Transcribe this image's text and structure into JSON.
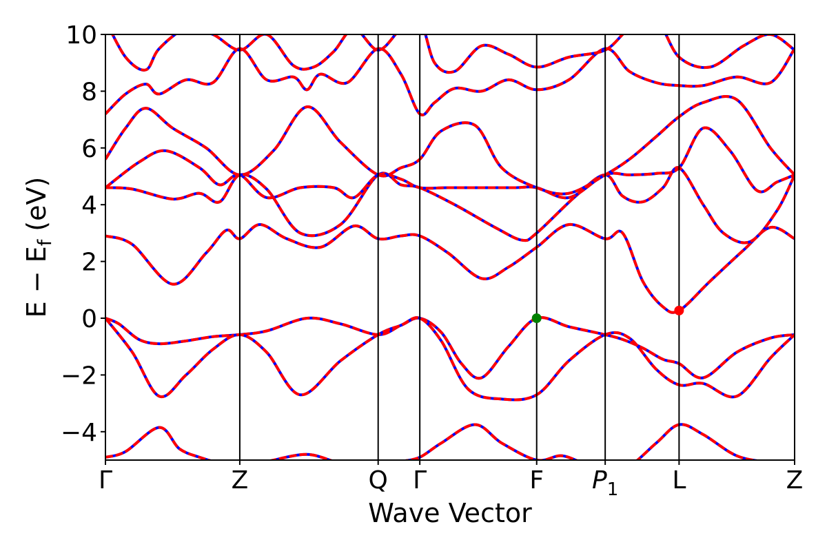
{
  "chart_data": {
    "type": "line",
    "title": "",
    "xlabel": "Wave Vector",
    "ylabel": "E − E_f (eV)",
    "ylabel_parts": {
      "main": "E  −  E",
      "sub": "f",
      "unit": " (eV)"
    },
    "ylim": [
      -5,
      10
    ],
    "yticks": [
      -4,
      -2,
      0,
      2,
      4,
      6,
      8,
      10
    ],
    "ytick_labels": [
      "−4",
      "−2",
      "0",
      "2",
      "4",
      "6",
      "8",
      "10"
    ],
    "xlim": [
      0,
      5.13
    ],
    "kpoints": [
      {
        "label": "Γ",
        "x": 0.0
      },
      {
        "label": "Z",
        "x": 1.0
      },
      {
        "label": "Q",
        "x": 2.03
      },
      {
        "label": "Γ",
        "x": 2.34
      },
      {
        "label": "F",
        "x": 3.21
      },
      {
        "label": "P",
        "sub": "1",
        "x": 3.72
      },
      {
        "label": "L",
        "x": 4.27
      },
      {
        "label": "Z",
        "x": 5.13
      }
    ],
    "series_style": {
      "base_color": "#0000ff",
      "overlay_color": "#ff0000",
      "overlay_dashed": true
    },
    "markers": [
      {
        "name": "VBM",
        "x": 3.21,
        "y": 0.0,
        "color": "#008000"
      },
      {
        "name": "CBM",
        "x": 4.27,
        "y": 0.27,
        "color": "#ff0000"
      }
    ],
    "bands": [
      {
        "x": [
          0,
          0.15,
          0.4,
          0.55,
          0.7,
          0.85,
          1.0,
          1.2,
          1.5,
          1.75,
          2.03,
          2.2,
          2.34,
          2.5,
          2.75,
          2.95,
          3.21,
          3.4,
          3.6,
          3.72,
          3.9,
          4.1,
          4.27,
          4.45,
          4.7,
          4.95,
          5.13
        ],
        "y": [
          -4.9,
          -4.7,
          -3.85,
          -4.6,
          -4.9,
          -5.1,
          -5.2,
          -5.05,
          -4.8,
          -5.1,
          -5.2,
          -5.05,
          -4.9,
          -4.4,
          -3.75,
          -4.4,
          -5.0,
          -4.85,
          -5.2,
          -5.3,
          -5.2,
          -4.4,
          -3.75,
          -4.1,
          -4.85,
          -5.1,
          -5.3
        ]
      },
      {
        "x": [
          0,
          0.1,
          0.25,
          0.4,
          0.6,
          0.8,
          1.0,
          1.2,
          1.5,
          1.75,
          2.03,
          2.2,
          2.34,
          2.5,
          2.65,
          2.8,
          3.0,
          3.21,
          3.45,
          3.72,
          3.85,
          4.0,
          4.15,
          4.27,
          4.45,
          4.7,
          4.95,
          5.13
        ],
        "y": [
          0.0,
          -0.2,
          -0.75,
          -0.9,
          -0.8,
          -0.65,
          -0.58,
          -0.45,
          0.0,
          -0.2,
          -0.58,
          -0.25,
          0.0,
          -0.5,
          -1.6,
          -2.1,
          -1.0,
          0.0,
          -0.3,
          -0.58,
          -0.75,
          -1.05,
          -1.45,
          -1.6,
          -2.1,
          -1.2,
          -0.7,
          -0.58
        ]
      },
      {
        "x": [
          0,
          0.2,
          0.4,
          0.6,
          0.8,
          1.0,
          1.2,
          1.45,
          1.75,
          2.03,
          2.2,
          2.34,
          2.5,
          2.7,
          2.95,
          3.21,
          3.45,
          3.72,
          3.9,
          4.1,
          4.27,
          4.45,
          4.7,
          4.95,
          5.13
        ],
        "y": [
          0.0,
          -1.2,
          -2.75,
          -2.0,
          -1.1,
          -0.58,
          -1.2,
          -2.7,
          -1.5,
          -0.58,
          -0.25,
          0.0,
          -0.8,
          -2.5,
          -2.85,
          -2.7,
          -1.5,
          -0.58,
          -0.7,
          -1.8,
          -2.35,
          -2.3,
          -2.75,
          -1.4,
          -0.58
        ]
      },
      {
        "x": [
          0,
          0.2,
          0.5,
          0.75,
          0.9,
          1.0,
          1.15,
          1.35,
          1.6,
          1.85,
          2.03,
          2.2,
          2.34,
          2.55,
          2.8,
          3.0,
          3.21,
          3.45,
          3.72,
          3.85,
          4.0,
          4.15,
          4.27,
          4.5,
          4.75,
          4.95,
          5.13
        ],
        "y": [
          2.9,
          2.6,
          1.2,
          2.3,
          3.1,
          2.8,
          3.3,
          2.8,
          2.5,
          3.25,
          2.8,
          2.9,
          2.9,
          2.3,
          1.4,
          1.8,
          2.5,
          3.3,
          2.8,
          3.0,
          1.3,
          0.4,
          0.27,
          1.3,
          2.4,
          3.2,
          2.8
        ]
      },
      {
        "x": [
          0,
          0.2,
          0.5,
          0.7,
          0.85,
          1.0,
          1.2,
          1.45,
          1.75,
          2.03,
          2.2,
          2.34,
          2.6,
          2.9,
          3.1,
          3.21,
          3.5,
          3.72,
          3.85,
          4.0,
          4.15,
          4.27,
          4.45,
          4.6,
          4.8,
          5.0,
          5.13
        ],
        "y": [
          4.6,
          4.55,
          4.2,
          4.4,
          4.1,
          5.05,
          4.55,
          3.0,
          3.3,
          5.05,
          4.7,
          4.6,
          4.0,
          3.2,
          2.75,
          3.0,
          4.3,
          5.05,
          4.3,
          4.1,
          4.6,
          5.3,
          4.0,
          3.0,
          2.7,
          3.8,
          5.05
        ]
      },
      {
        "x": [
          0,
          0.25,
          0.45,
          0.7,
          0.85,
          1.0,
          1.2,
          1.45,
          1.7,
          1.85,
          2.03,
          2.2,
          2.34,
          2.55,
          2.85,
          3.05,
          3.21,
          3.45,
          3.72,
          3.9,
          4.1,
          4.27,
          4.45,
          4.65,
          4.85,
          5.0,
          5.13
        ],
        "y": [
          4.6,
          5.5,
          5.9,
          5.3,
          4.7,
          5.05,
          4.25,
          4.6,
          4.6,
          4.25,
          5.05,
          4.9,
          4.6,
          4.6,
          4.6,
          4.6,
          4.6,
          4.25,
          5.05,
          5.05,
          5.1,
          5.3,
          6.7,
          5.9,
          4.5,
          4.8,
          5.05
        ]
      },
      {
        "x": [
          0,
          0.15,
          0.3,
          0.5,
          0.75,
          1.0,
          1.25,
          1.5,
          1.75,
          2.03,
          2.2,
          2.34,
          2.5,
          2.75,
          2.95,
          3.21,
          3.45,
          3.72,
          3.9,
          4.1,
          4.27,
          4.45,
          4.7,
          4.95,
          5.13
        ],
        "y": [
          5.6,
          6.7,
          7.4,
          6.7,
          6.0,
          5.05,
          5.9,
          7.45,
          6.2,
          5.05,
          5.3,
          5.6,
          6.6,
          6.8,
          5.3,
          4.6,
          4.4,
          5.05,
          5.6,
          6.4,
          7.1,
          7.6,
          7.7,
          6.0,
          5.05
        ]
      },
      {
        "x": [
          0,
          0.15,
          0.3,
          0.4,
          0.6,
          0.8,
          1.0,
          1.2,
          1.4,
          1.5,
          1.6,
          1.8,
          2.03,
          2.2,
          2.34,
          2.45,
          2.6,
          2.8,
          3.0,
          3.21,
          3.45,
          3.72,
          3.9,
          4.1,
          4.27,
          4.45,
          4.7,
          4.95,
          5.13
        ],
        "y": [
          7.2,
          7.9,
          8.25,
          7.9,
          8.4,
          8.3,
          9.5,
          8.4,
          8.5,
          8.05,
          8.6,
          8.3,
          9.5,
          8.6,
          7.2,
          7.6,
          8.1,
          8.0,
          8.4,
          8.05,
          8.4,
          9.5,
          8.7,
          8.3,
          8.2,
          8.2,
          8.5,
          8.3,
          9.5
        ]
      },
      {
        "x": [
          0,
          0.15,
          0.3,
          0.4,
          0.6,
          0.8,
          1.0,
          1.2,
          1.4,
          1.55,
          1.7,
          1.85,
          2.03,
          2.2,
          2.34,
          2.45,
          2.6,
          2.8,
          3.0,
          3.21,
          3.45,
          3.72,
          3.9,
          4.1,
          4.27,
          4.5,
          4.75,
          4.95,
          5.13
        ],
        "y": [
          10.5,
          9.2,
          8.75,
          9.5,
          10.2,
          10.0,
          9.45,
          10.0,
          8.9,
          8.85,
          9.4,
          10.2,
          9.45,
          10.2,
          10.5,
          9.0,
          8.7,
          9.6,
          9.3,
          8.85,
          9.2,
          9.45,
          10.2,
          10.5,
          9.2,
          8.85,
          9.6,
          10.0,
          9.45
        ]
      }
    ]
  }
}
